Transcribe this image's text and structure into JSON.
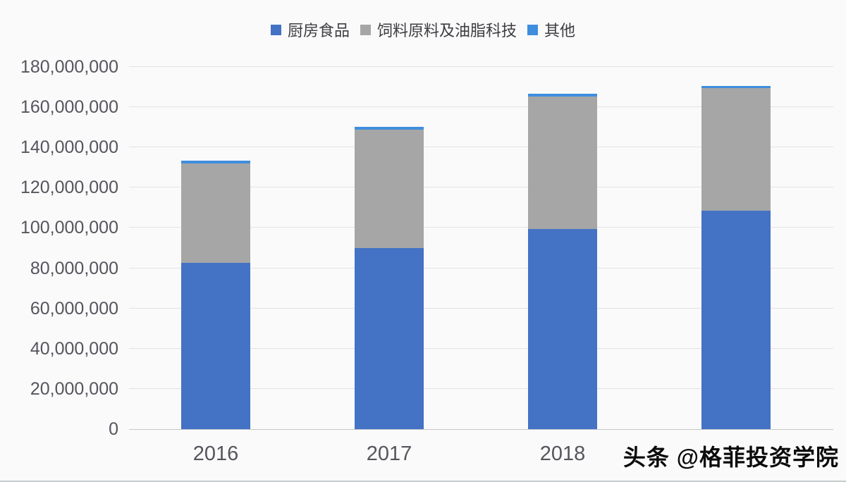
{
  "chart_data": {
    "type": "bar",
    "stacked": true,
    "title": "",
    "xlabel": "",
    "ylabel": "",
    "categories": [
      "2016",
      "2017",
      "2018",
      ""
    ],
    "series": [
      {
        "name": "厨房食品",
        "color": "#4472c4",
        "values": [
          82500000,
          90000000,
          99300000,
          108500000
        ]
      },
      {
        "name": "饲料原料及油脂科技",
        "color": "#a6a6a6",
        "values": [
          49700000,
          59000000,
          66000000,
          61000000
        ]
      },
      {
        "name": "其他",
        "color": "#3f8ede",
        "values": [
          1300000,
          1400000,
          1500000,
          1200000
        ]
      }
    ],
    "ylim": [
      0,
      180000000
    ],
    "ytick_step": 20000000,
    "ytick_labels": [
      "0",
      "20,000,000",
      "40,000,000",
      "60,000,000",
      "80,000,000",
      "100,000,000",
      "120,000,000",
      "140,000,000",
      "160,000,000",
      "180,000,000"
    ],
    "grid": true,
    "legend_position": "top",
    "grid_color": "#e3e3e5",
    "axis_text_color": "#55555d"
  },
  "watermark": {
    "text": "头条 @格菲投资学院"
  }
}
